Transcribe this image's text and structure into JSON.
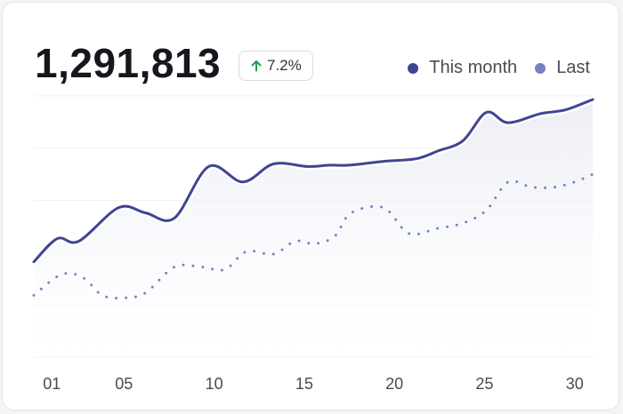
{
  "headline": {
    "value": "1,291,813"
  },
  "badge": {
    "change": "7.2%",
    "icon": "arrow-up-icon",
    "color": "#1f9d55"
  },
  "legend": [
    {
      "label": "This month",
      "color": "#3f4593"
    },
    {
      "label": "Last",
      "color": "#7b80c4"
    }
  ],
  "chart_data": {
    "type": "line",
    "title": "",
    "xlabel": "",
    "ylabel": "",
    "grid": true,
    "legend_position": "top-right",
    "xlim": [
      0,
      31
    ],
    "ylim": [
      0,
      100
    ],
    "x_ticks": [
      "01",
      "05",
      "10",
      "15",
      "20",
      "25",
      "30"
    ],
    "x_tick_values": [
      1,
      5,
      10,
      15,
      20,
      25,
      30
    ],
    "series": [
      {
        "name": "This month",
        "style": "solid",
        "color": "#3f4593",
        "x": [
          0,
          1.3,
          2.5,
          4.7,
          6.2,
          7.8,
          9.7,
          11.6,
          13.3,
          15.2,
          16.4,
          17.5,
          19.4,
          21.2,
          22.4,
          23.8,
          25.1,
          26.3,
          28.1,
          29.5,
          31
        ],
        "values": [
          37,
          46,
          45,
          58,
          56,
          54,
          74,
          68,
          75,
          74,
          74.5,
          74.5,
          76,
          77,
          80,
          84,
          95,
          91,
          94.5,
          96,
          100
        ]
      },
      {
        "name": "Last",
        "style": "dotted",
        "color": "#7b80c4",
        "x": [
          0,
          1.5,
          2.7,
          3.8,
          5,
          6.2,
          7.8,
          9.3,
          10.6,
          11.8,
          13.3,
          14.5,
          15.6,
          16.7,
          17.6,
          19.4,
          20.8,
          22.4,
          23.8,
          25.1,
          26.3,
          27.6,
          28.9,
          30,
          31
        ],
        "values": [
          24,
          32,
          31,
          24,
          23,
          25,
          35,
          35,
          34,
          41,
          40,
          45,
          44,
          47,
          56,
          58,
          48,
          50,
          52,
          57,
          68,
          66,
          66,
          68,
          71
        ]
      }
    ]
  }
}
